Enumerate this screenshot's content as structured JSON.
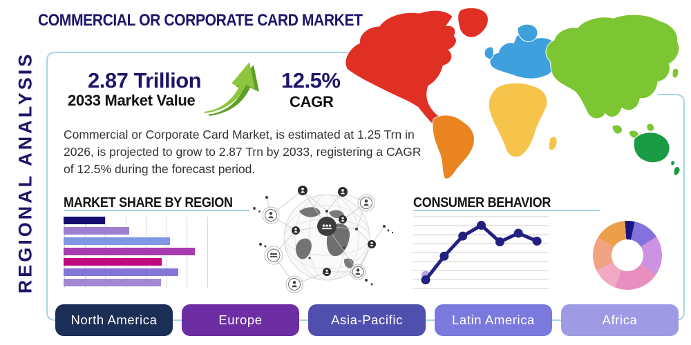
{
  "page": {
    "title": "COMMERCIAL OR CORPORATE CARD MARKET",
    "side_label": "REGIONAL ANALYSIS"
  },
  "stats": {
    "market_value": "2.87 Trillion",
    "market_value_label": "2033 Market Value",
    "cagr_value": "12.5%",
    "cagr_label": "CAGR"
  },
  "description": "Commercial or Corporate Card Market, is estimated at 1.25 Trn in 2026, is projected to grow to 2.87 Trn by 2033, registering a CAGR of 12.5% during the forecast period.",
  "colors": {
    "navy": "#1c1569",
    "rule": "#a5d3e8",
    "frame": "#a5d3e8",
    "arrow_green": "#8cc63e",
    "arrow_green_dark": "#5f9e27",
    "line_chart": "#23207f",
    "line_chart_ghost_dot": "#b3a5e3"
  },
  "chart_data": [
    {
      "type": "bar",
      "title": "MARKET SHARE BY REGION",
      "orientation": "horizontal",
      "values": [
        60,
        95,
        154,
        190,
        142,
        166,
        141
      ],
      "xlim": [
        0,
        212
      ],
      "bar_colors": [
        "#140c70",
        "#9c7fd0",
        "#7e97e2",
        "#a73cb0",
        "#c00880",
        "#8476d6",
        "#a287d4"
      ],
      "gridlines": 8,
      "grid": true,
      "categories": []
    },
    {
      "type": "line",
      "title": "CONSUMER BEHAVIOR",
      "x": [
        1,
        2,
        3,
        4,
        5,
        6,
        7
      ],
      "values": [
        10,
        43,
        71,
        86,
        63,
        75,
        64
      ],
      "ylim": [
        0,
        100
      ],
      "gridlines": 9,
      "grid": true
    },
    {
      "type": "pie",
      "variant": "donut",
      "slices": [
        {
          "color": "#1b1583",
          "pct": 4.5
        },
        {
          "color": "#8472dc",
          "pct": 12.5
        },
        {
          "color": "#cd92e2",
          "pct": 18.5
        },
        {
          "color": "#e98fc0",
          "pct": 21.5
        },
        {
          "color": "#f2a9c4",
          "pct": 12
        },
        {
          "color": "#f2a381",
          "pct": 16
        },
        {
          "color": "#eb9f4b",
          "pct": 15
        }
      ]
    }
  ],
  "map_regions": [
    {
      "id": "north_america",
      "name": "North America",
      "color": "#e02f23"
    },
    {
      "id": "south_america",
      "name": "South America",
      "color": "#ea8420"
    },
    {
      "id": "europe",
      "name": "Europe",
      "color": "#3ea0dc"
    },
    {
      "id": "africa",
      "name": "Africa",
      "color": "#f6c44a"
    },
    {
      "id": "asia",
      "name": "Asia",
      "color": "#7cc633"
    },
    {
      "id": "oceania",
      "name": "Oceania",
      "color": "#199b45"
    }
  ],
  "region_buttons": [
    {
      "label": "North America",
      "color": "#1b2e55"
    },
    {
      "label": "Europe",
      "color": "#6d2da3"
    },
    {
      "label": "Asia-Pacific",
      "color": "#4f4fae"
    },
    {
      "label": "Latin America",
      "color": "#7a79de"
    },
    {
      "label": "Africa",
      "color": "#9e9ae4"
    }
  ]
}
